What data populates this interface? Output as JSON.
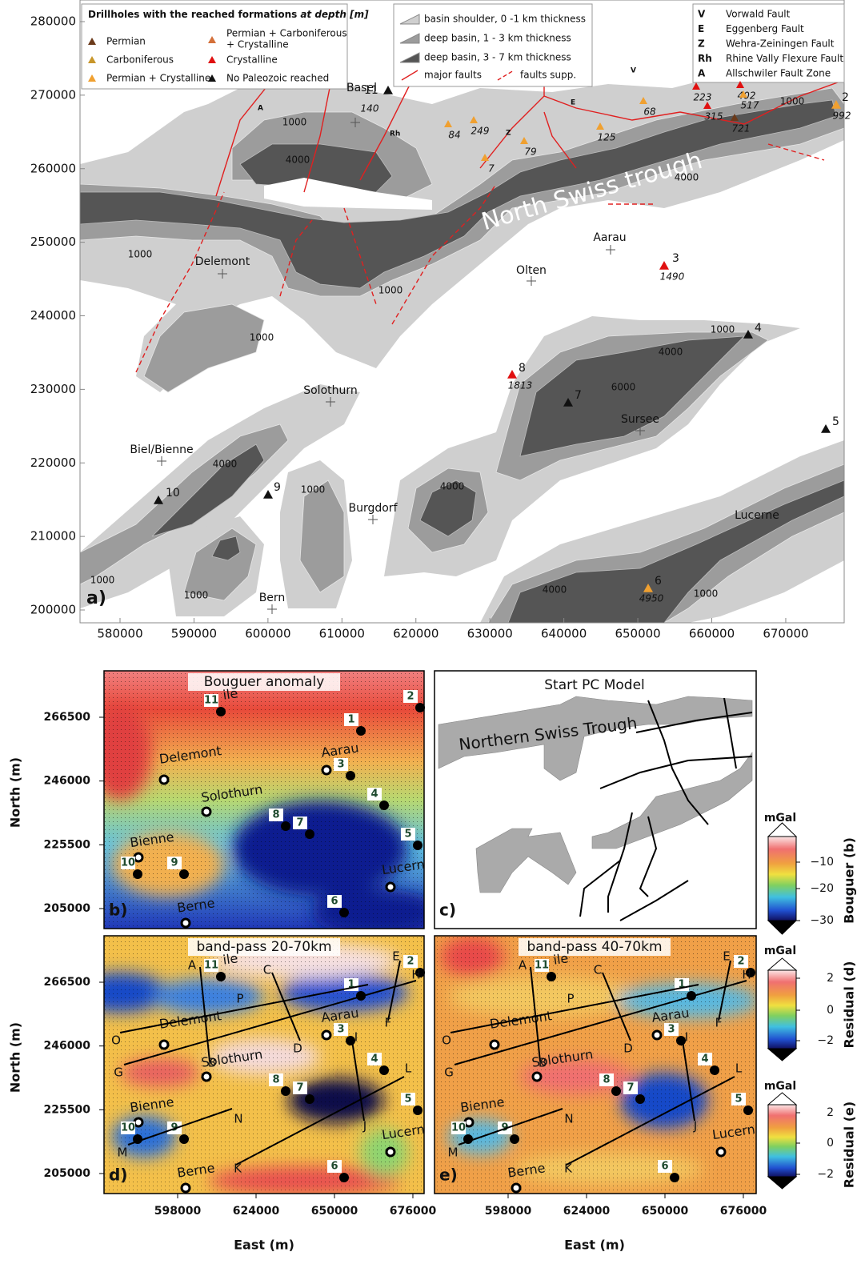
{
  "panel_a": {
    "label": "a)",
    "formation_legend": {
      "title": "Drillholes with the reached formations",
      "title_emphasis": "at depth [m]",
      "items": [
        "Permian",
        "Carboniferous",
        "Permian + Crystalline",
        [
          "Permian + Carboniferous",
          "+ Crystalline"
        ],
        "Crystalline",
        "No Paleozoic reached"
      ]
    },
    "basin_legend": [
      "basin shoulder, 0 -1 km thickness",
      "deep basin, 1 - 3 km thickness",
      "deep basin, 3 - 7 km thickness",
      "major faults",
      "faults supp."
    ],
    "fault_legend": [
      {
        "abbr": "V",
        "name": "Vorwald Fault"
      },
      {
        "abbr": "E",
        "name": "Eggenberg Fault"
      },
      {
        "abbr": "Z",
        "name": "Wehra-Zeiningen Fault"
      },
      {
        "abbr": "Rh",
        "name": "Rhine Vally Flexure Fault"
      },
      {
        "abbr": "A",
        "name": "Allschwiler Fault Zone"
      }
    ],
    "trough_label": "North Swiss trough",
    "fault_labels": [
      "A",
      "Rh",
      "Z",
      "E",
      "V"
    ],
    "towns": [
      "Basel",
      "Delemont",
      "Olten",
      "Aarau",
      "Solothurn",
      "Biel/Bienne",
      "Burgdorf",
      "Bern",
      "Sursee",
      "Lucerne"
    ],
    "wells": [
      {
        "number": "11",
        "depth": "140"
      },
      {
        "number": "2",
        "depth": "992"
      },
      {
        "number": "3",
        "depth": "1490"
      },
      {
        "number": "4"
      },
      {
        "number": "5"
      },
      {
        "number": "6",
        "depth": "4950"
      },
      {
        "number": "7"
      },
      {
        "number": "8",
        "depth": "1813"
      },
      {
        "number": "9"
      },
      {
        "number": "10"
      }
    ],
    "shallow_well_depths": [
      "84",
      "249",
      "79",
      "7",
      "125",
      "68",
      "223",
      "315",
      "721",
      "402",
      "517"
    ],
    "contour_labels": [
      "1000",
      "4000",
      "1000",
      "1000",
      "1000",
      "4000",
      "1000",
      "1000",
      "4000",
      "6000",
      "4000",
      "1000",
      "4000",
      "1000",
      "1000",
      "4000",
      "1000"
    ],
    "xticks": [
      580000,
      590000,
      600000,
      610000,
      620000,
      630000,
      640000,
      650000,
      660000,
      670000
    ],
    "yticks": [
      280000,
      270000,
      260000,
      250000,
      240000,
      230000,
      220000,
      210000,
      200000
    ]
  },
  "small_maps": {
    "ylabel": "North (m)",
    "xlabel": "East (m)",
    "xticks": [
      598000,
      624000,
      650000,
      676000
    ],
    "yticks": [
      266500,
      246000,
      225500,
      205000
    ],
    "towns": [
      "ile",
      "Delemont",
      "Aarau",
      "Solothurn",
      "Bienne",
      "Lucern",
      "Berne"
    ],
    "wells": [
      "11",
      "1",
      "2",
      "3",
      "4",
      "5",
      "6",
      "7",
      "8",
      "9",
      "10"
    ],
    "profile_letters": [
      "A",
      "B",
      "C",
      "D",
      "E",
      "F",
      "G",
      "H",
      "I",
      "J",
      "K",
      "L",
      "M",
      "N",
      "O",
      "P"
    ]
  },
  "panel_b": {
    "label": "b)",
    "title": "Bouguer anomaly"
  },
  "panel_c": {
    "label": "c)",
    "title": "Start PC Model",
    "trough_label": "Northern Swiss Trough"
  },
  "panel_d": {
    "label": "d)",
    "title": "band-pass 20-70km"
  },
  "panel_e": {
    "label": "e)",
    "title": "band-pass 40-70km"
  },
  "colorbars": [
    {
      "unit": "mGal",
      "ticks": [
        "−10",
        "−20",
        "−30"
      ],
      "label": "Bouguer (b)"
    },
    {
      "unit": "mGal",
      "ticks": [
        "2",
        "0",
        "−2"
      ],
      "label": "Residual (d)"
    },
    {
      "unit": "mGal",
      "ticks": [
        "2",
        "0",
        "−2"
      ],
      "label": "Residual (e)"
    }
  ]
}
